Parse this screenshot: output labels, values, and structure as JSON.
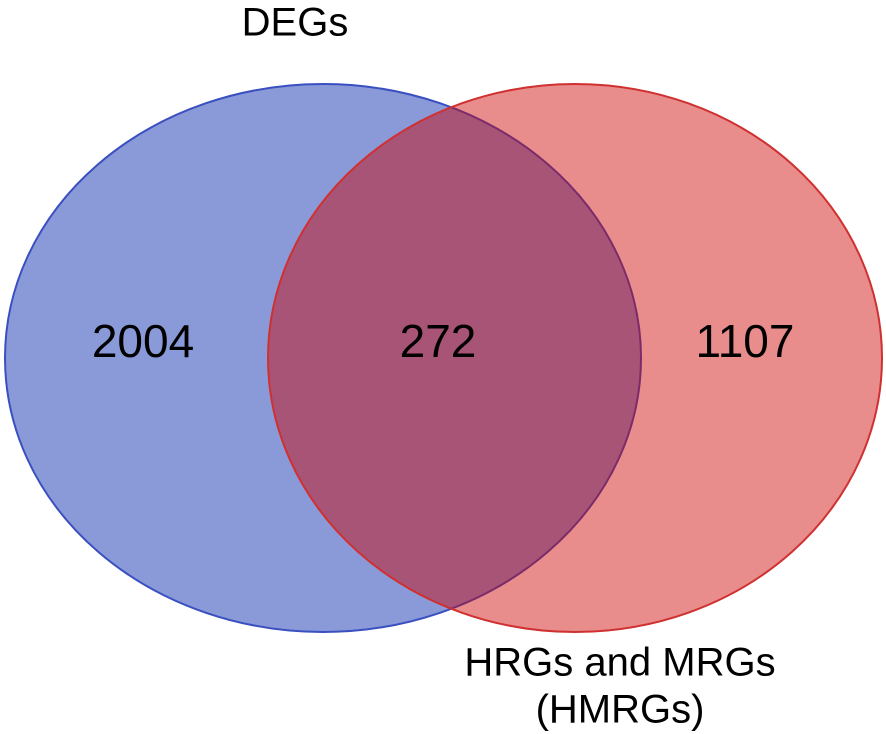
{
  "chart_data": {
    "type": "venn",
    "sets": [
      {
        "label_lines": [
          "DEGs"
        ],
        "color": "#8a9ad8",
        "stroke": "#3a4fc0",
        "opacity": 1,
        "only": 2004
      },
      {
        "label_lines": [
          "HRGs and MRGs",
          "(HMRGs)"
        ],
        "color": "#cc0000",
        "stroke": "#d03030",
        "opacity": 0.45,
        "only": 1107
      }
    ],
    "intersection": 272
  }
}
